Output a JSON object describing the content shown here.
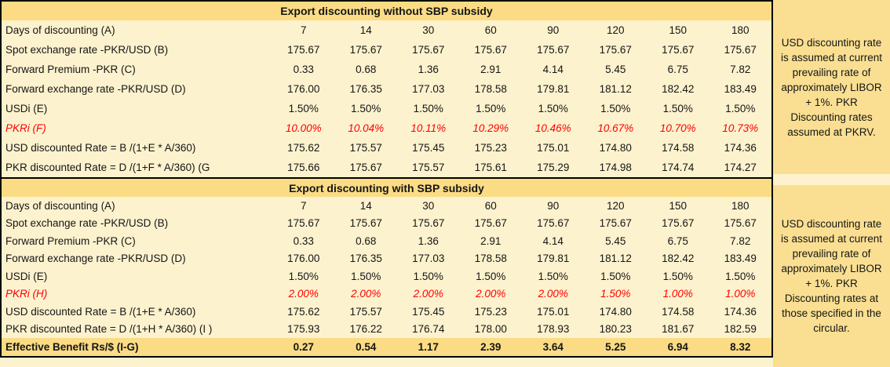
{
  "colors": {
    "page_bg": "#FDF2CE",
    "band_gold": "#FBDC85",
    "note_gold": "#FADF92",
    "red_text": "#FF0000",
    "border": "#000000"
  },
  "sections": [
    {
      "title": "Export discounting without SBP subsidy",
      "rows": [
        {
          "label": "Days of discounting (A)",
          "values": [
            "7",
            "14",
            "30",
            "60",
            "90",
            "120",
            "150",
            "180"
          ]
        },
        {
          "label": "Spot exchange rate -PKR/USD (B)",
          "values": [
            "175.67",
            "175.67",
            "175.67",
            "175.67",
            "175.67",
            "175.67",
            "175.67",
            "175.67"
          ]
        },
        {
          "label": "Forward Premium -PKR (C)",
          "values": [
            "0.33",
            "0.68",
            "1.36",
            "2.91",
            "4.14",
            "5.45",
            "6.75",
            "7.82"
          ]
        },
        {
          "label": "Forward exchange rate -PKR/USD (D)",
          "values": [
            "176.00",
            "176.35",
            "177.03",
            "178.58",
            "179.81",
            "181.12",
            "182.42",
            "183.49"
          ]
        },
        {
          "label": "USDi (E)",
          "values": [
            "1.50%",
            "1.50%",
            "1.50%",
            "1.50%",
            "1.50%",
            "1.50%",
            "1.50%",
            "1.50%"
          ]
        },
        {
          "label": "PKRi (F)",
          "red": true,
          "values": [
            "10.00%",
            "10.04%",
            "10.11%",
            "10.29%",
            "10.46%",
            "10.67%",
            "10.70%",
            "10.73%"
          ]
        },
        {
          "label": "USD discounted Rate = B /(1+E * A/360)",
          "values": [
            "175.62",
            "175.57",
            "175.45",
            "175.23",
            "175.01",
            "174.80",
            "174.58",
            "174.36"
          ]
        },
        {
          "label": "PKR discounted Rate = D /(1+F * A/360)  (G",
          "values": [
            "175.66",
            "175.67",
            "175.57",
            "175.61",
            "175.29",
            "174.98",
            "174.74",
            "174.27"
          ]
        }
      ],
      "note": "USD discounting rate is assumed at current prevailing rate of approximately LIBOR + 1%. PKR Discounting rates assumed at PKRV."
    },
    {
      "title": "Export discounting with SBP subsidy",
      "rows": [
        {
          "label": "Days of discounting (A)",
          "values": [
            "7",
            "14",
            "30",
            "60",
            "90",
            "120",
            "150",
            "180"
          ]
        },
        {
          "label": "Spot exchange rate -PKR/USD (B)",
          "values": [
            "175.67",
            "175.67",
            "175.67",
            "175.67",
            "175.67",
            "175.67",
            "175.67",
            "175.67"
          ]
        },
        {
          "label": "Forward Premium -PKR (C)",
          "values": [
            "0.33",
            "0.68",
            "1.36",
            "2.91",
            "4.14",
            "5.45",
            "6.75",
            "7.82"
          ]
        },
        {
          "label": "Forward exchange rate -PKR/USD (D)",
          "values": [
            "176.00",
            "176.35",
            "177.03",
            "178.58",
            "179.81",
            "181.12",
            "182.42",
            "183.49"
          ]
        },
        {
          "label": "USDi (E)",
          "values": [
            "1.50%",
            "1.50%",
            "1.50%",
            "1.50%",
            "1.50%",
            "1.50%",
            "1.50%",
            "1.50%"
          ]
        },
        {
          "label": "PKRi (H)",
          "red": true,
          "values": [
            "2.00%",
            "2.00%",
            "2.00%",
            "2.00%",
            "2.00%",
            "1.50%",
            "1.00%",
            "1.00%"
          ]
        },
        {
          "label": "USD discounted Rate = B /(1+E * A/360)",
          "values": [
            "175.62",
            "175.57",
            "175.45",
            "175.23",
            "175.01",
            "174.80",
            "174.58",
            "174.36"
          ]
        },
        {
          "label": "PKR discounted Rate = D /(1+H * A/360)  (I )",
          "values": [
            "175.93",
            "176.22",
            "176.74",
            "178.00",
            "178.93",
            "180.23",
            "181.67",
            "182.59"
          ]
        }
      ],
      "note": "USD discounting rate is assumed at current prevailing rate of approximately LIBOR + 1%. PKR Discounting rates at those specified in the circular."
    }
  ],
  "footer": {
    "label": "Effective Benefit Rs/$  (I-G)",
    "values": [
      "0.27",
      "0.54",
      "1.17",
      "2.39",
      "3.64",
      "5.25",
      "6.94",
      "8.32"
    ]
  }
}
